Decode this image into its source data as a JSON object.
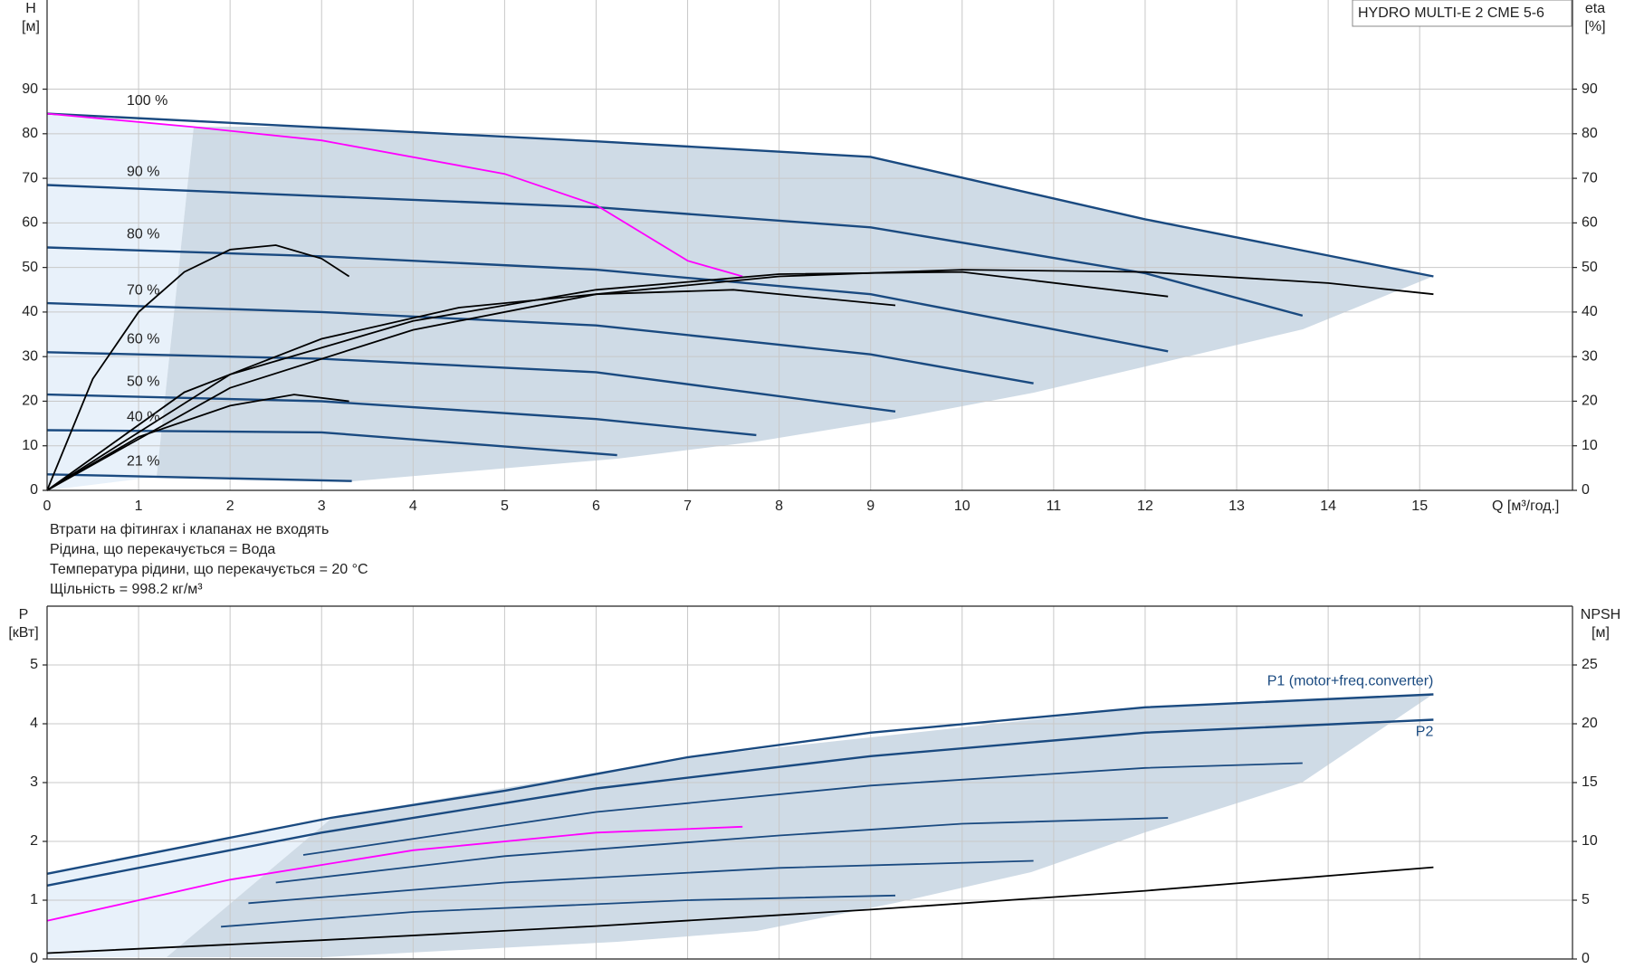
{
  "chart_data": [
    {
      "type": "line",
      "title": "HYDRO MULTI-E 2 CME 5-6",
      "ylabel": [
        "H",
        "[м]"
      ],
      "y2label": [
        "eta",
        "[%]"
      ],
      "xlabel": "Q [м³/год.]",
      "xlim": [
        0,
        16.67
      ],
      "xticks": [
        0,
        1,
        2,
        3,
        4,
        5,
        6,
        7,
        8,
        9,
        10,
        11,
        12,
        13,
        14,
        15
      ],
      "ylim": [
        0,
        110
      ],
      "yticks": [
        0,
        10,
        20,
        30,
        40,
        50,
        60,
        70,
        80,
        90
      ],
      "y2lim": [
        0,
        110
      ],
      "y2ticks": [
        0,
        10,
        20,
        30,
        40,
        50,
        60,
        70,
        80,
        90
      ],
      "grid": true,
      "series": [
        {
          "name": "100 %",
          "color": "#1a4a80",
          "x": [
            0,
            3,
            6,
            9,
            12,
            15.15
          ],
          "values": [
            84.5,
            81.4,
            78.3,
            74.8,
            60.8,
            48
          ]
        },
        {
          "name": "90 %",
          "color": "#1a4a80",
          "x": [
            0,
            3,
            6,
            9,
            12,
            13.72
          ],
          "values": [
            68.5,
            66,
            63.5,
            59,
            48.7,
            39.2
          ]
        },
        {
          "name": "80 %",
          "color": "#1a4a80",
          "x": [
            0,
            3,
            6,
            9,
            12.25
          ],
          "values": [
            54.5,
            52.5,
            49.5,
            44,
            31.2
          ]
        },
        {
          "name": "70 %",
          "color": "#1a4a80",
          "x": [
            0,
            3,
            6,
            9,
            10.78
          ],
          "values": [
            42,
            40,
            37,
            30.5,
            24
          ]
        },
        {
          "name": "60 %",
          "color": "#1a4a80",
          "x": [
            0,
            3,
            6,
            9.27
          ],
          "values": [
            31,
            29.5,
            26.5,
            17.7
          ]
        },
        {
          "name": "50 %",
          "color": "#1a4a80",
          "x": [
            0,
            3,
            6,
            7.75
          ],
          "values": [
            21.5,
            20,
            16,
            12.4
          ]
        },
        {
          "name": "40 %",
          "color": "#1a4a80",
          "x": [
            0,
            3,
            6.23
          ],
          "values": [
            13.5,
            13,
            7.9
          ]
        },
        {
          "name": "21 %",
          "color": "#1a4a80",
          "x": [
            0,
            3.33
          ],
          "values": [
            3.6,
            2.1
          ]
        },
        {
          "color": "#ff00ff",
          "x": [
            0,
            1.6,
            3,
            5,
            6,
            7,
            7.6
          ],
          "values": [
            84.5,
            81.5,
            78.5,
            71,
            64,
            51.5,
            48
          ]
        },
        {
          "color": "#000000",
          "axis": "y2",
          "x": [
            0,
            2,
            4,
            6,
            8,
            10,
            12,
            14,
            15.15
          ],
          "values": [
            0,
            23,
            36,
            44,
            48,
            49.5,
            49,
            46.5,
            44
          ]
        },
        {
          "color": "#000000",
          "axis": "y2",
          "x": [
            0,
            2,
            4,
            6,
            8,
            10,
            12.25
          ],
          "values": [
            0,
            26,
            38,
            45,
            48.5,
            49,
            43.5
          ]
        },
        {
          "color": "#000000",
          "axis": "y2",
          "x": [
            0,
            1.5,
            3,
            4.5,
            6,
            7.5,
            9.27
          ],
          "values": [
            0,
            22,
            34,
            41,
            44,
            45,
            41.5
          ]
        },
        {
          "color": "#000000",
          "axis": "y2",
          "x": [
            0,
            1,
            2,
            2.7,
            3.3
          ],
          "values": [
            0,
            12,
            19,
            21.5,
            20
          ]
        },
        {
          "color": "#000000",
          "axis": "y2",
          "x": [
            0,
            0.5,
            1,
            1.5,
            2,
            2.5,
            3,
            3.3
          ],
          "values": [
            0,
            25,
            40,
            49,
            54,
            55,
            52,
            48
          ]
        }
      ]
    },
    {
      "type": "line",
      "ylabel": [
        "P",
        "[кВт]"
      ],
      "y2label": [
        "NPSH",
        "[м]"
      ],
      "xlim": [
        0,
        16.67
      ],
      "ylim": [
        0,
        6
      ],
      "yticks": [
        0,
        1,
        2,
        3,
        4,
        5
      ],
      "y2lim": [
        0,
        30
      ],
      "y2ticks": [
        0,
        5,
        10,
        15,
        20,
        25
      ],
      "grid": true,
      "series": [
        {
          "name": "P1 (motor+freq.converter)",
          "color": "#1a4a80",
          "x": [
            0,
            3.1,
            5,
            7,
            9,
            12,
            15.15
          ],
          "values": [
            1.45,
            2.4,
            2.86,
            3.43,
            3.85,
            4.28,
            4.5
          ]
        },
        {
          "name": "P2",
          "color": "#1a4a80",
          "x": [
            0,
            3,
            6,
            9,
            12,
            15.15
          ],
          "values": [
            1.25,
            2.15,
            2.9,
            3.45,
            3.85,
            4.07
          ]
        },
        {
          "color": "#1a4a80",
          "x": [
            2.8,
            6,
            9,
            12,
            13.72
          ],
          "values": [
            1.77,
            2.5,
            2.95,
            3.25,
            3.33
          ]
        },
        {
          "color": "#1a4a80",
          "x": [
            2.5,
            5,
            8,
            10,
            12.25
          ],
          "values": [
            1.3,
            1.75,
            2.1,
            2.3,
            2.4
          ]
        },
        {
          "color": "#1a4a80",
          "x": [
            2.2,
            5,
            8,
            10.78
          ],
          "values": [
            0.95,
            1.3,
            1.55,
            1.67
          ]
        },
        {
          "color": "#1a4a80",
          "x": [
            1.9,
            4,
            7,
            9.27
          ],
          "values": [
            0.55,
            0.8,
            1.0,
            1.08
          ]
        },
        {
          "color": "#ff00ff",
          "x": [
            0,
            2,
            4,
            6,
            7.6
          ],
          "values": [
            0.65,
            1.35,
            1.85,
            2.15,
            2.25
          ]
        },
        {
          "color": "#000000",
          "axis": "y2",
          "x": [
            0,
            3,
            6,
            9,
            12,
            15.15
          ],
          "values": [
            0.5,
            1.6,
            2.8,
            4.2,
            5.8,
            7.8
          ]
        }
      ]
    }
  ],
  "notes": [
    "Втрати на фітингах і клапанах не входять",
    "Рідина, що перекачується = Вода",
    "Температура рідини, що перекачується = 20 °C",
    "Щільність = 998.2 кг/м³"
  ]
}
